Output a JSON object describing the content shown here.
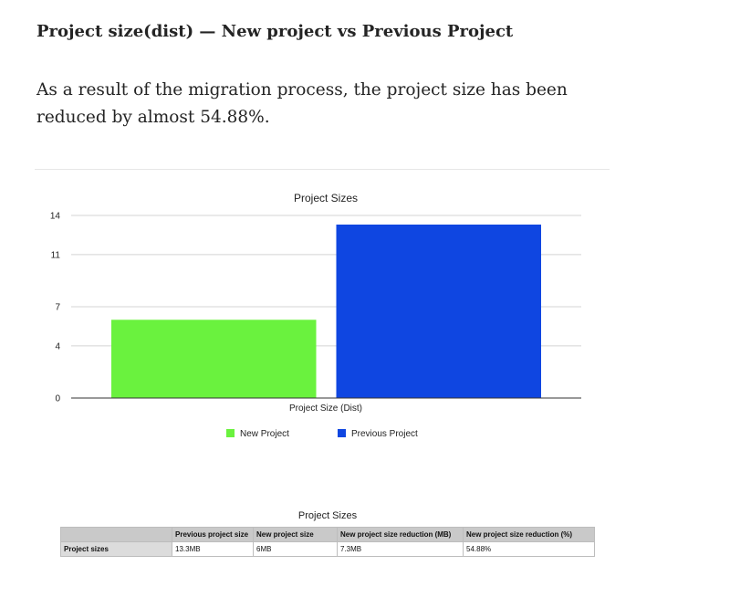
{
  "article": {
    "heading": "Project size(dist) — New project vs Previous Project",
    "paragraph": "As a result of the migration process, the project size has been reduced by almost 54.88%."
  },
  "chart_data": {
    "type": "bar",
    "title": "Project Sizes",
    "categories": [
      "Project Size (Dist)"
    ],
    "series": [
      {
        "name": "New Project",
        "values": [
          6
        ],
        "color": "#6af23e"
      },
      {
        "name": "Previous Project",
        "values": [
          13.3
        ],
        "color": "#0f46e1"
      }
    ],
    "xlabel": "Project Size (Dist)",
    "ylabel": "",
    "ylim": [
      0,
      14
    ],
    "yticks": [
      "0",
      "4",
      "7",
      "11",
      "14"
    ],
    "grid": true,
    "legend_position": "bottom"
  },
  "table": {
    "title": "Project Sizes",
    "headers": [
      "",
      "Previous project size",
      "New project size",
      "New project size reduction (MB)",
      "New project size reduction (%)"
    ],
    "rows": [
      [
        "Project sizes",
        "13.3MB",
        "6MB",
        "7.3MB",
        "54.88%"
      ]
    ]
  }
}
